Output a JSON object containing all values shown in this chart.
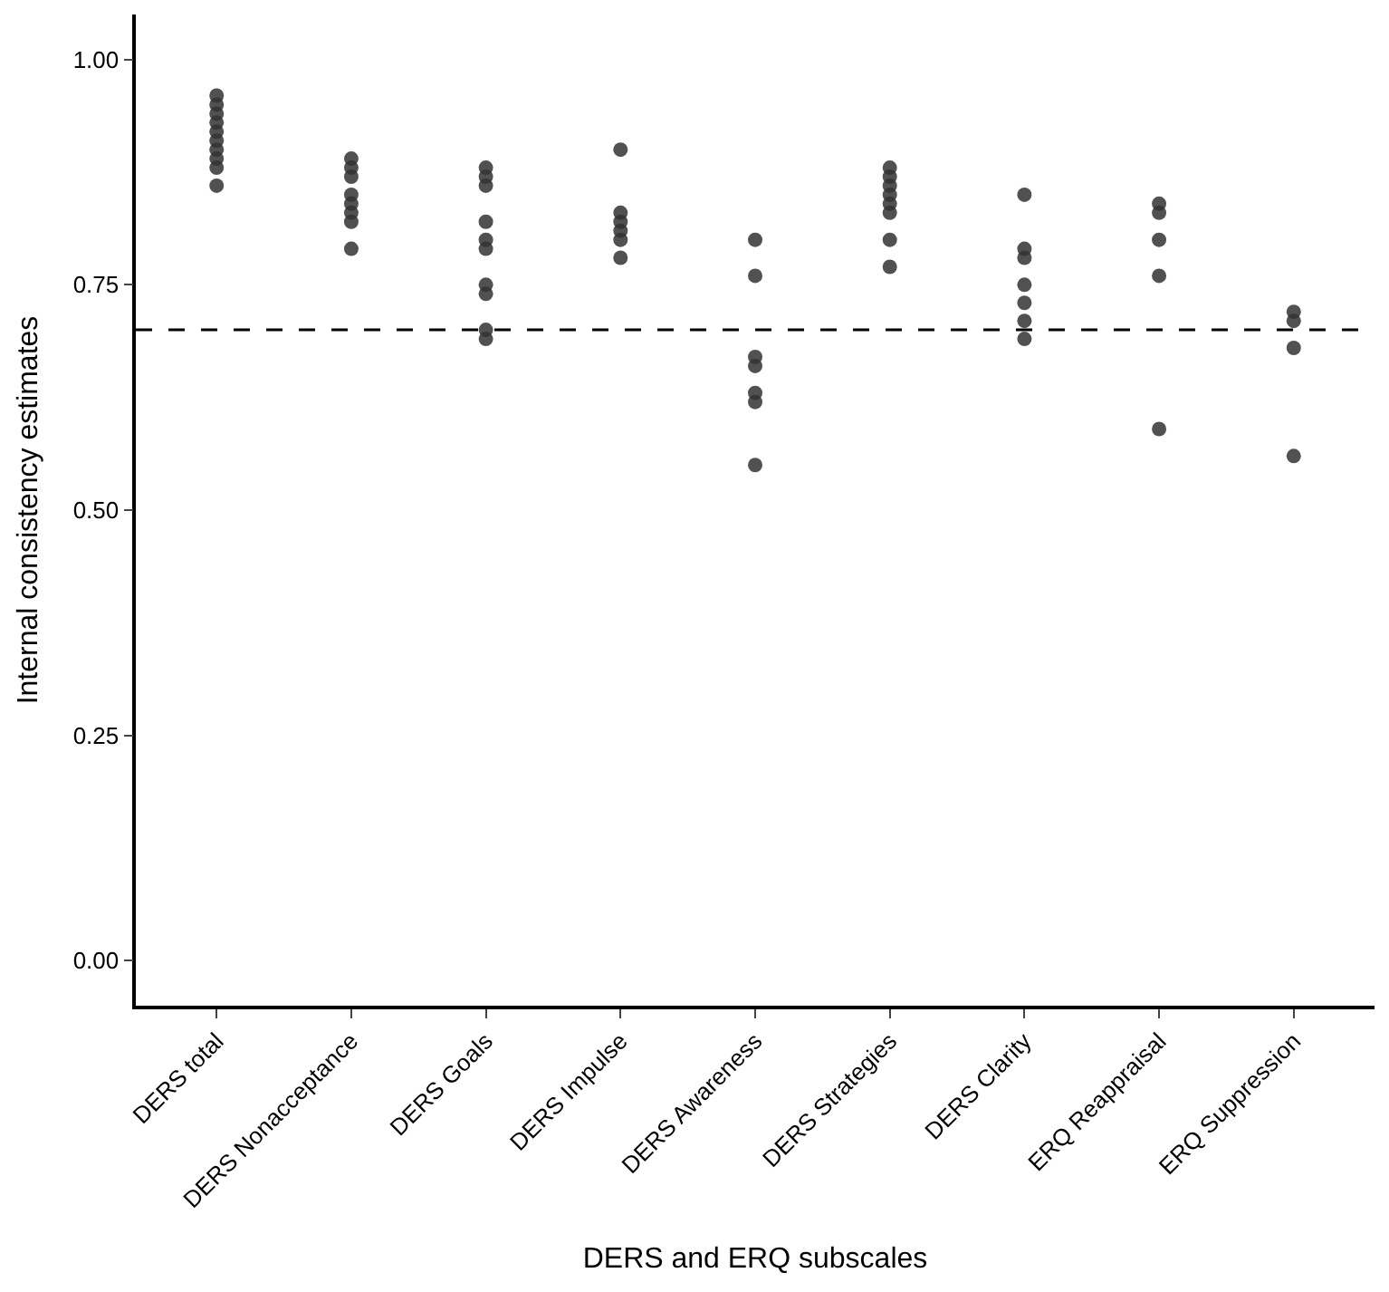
{
  "chart_data": {
    "type": "scatter",
    "xlabel": "DERS and ERQ subscales",
    "ylabel": "Internal consistency estimates",
    "categories": [
      "DERS total",
      "DERS Nonacceptance",
      "DERS Goals",
      "DERS Impulse",
      "DERS Awareness",
      "DERS Strategies",
      "DERS Clarity",
      "ERQ Reappraisal",
      "ERQ Suppression"
    ],
    "series": [
      {
        "color": "#333333",
        "x": [
          "DERS total",
          "DERS total",
          "DERS total",
          "DERS total",
          "DERS total",
          "DERS total",
          "DERS total",
          "DERS total",
          "DERS total",
          "DERS total",
          "DERS Nonacceptance",
          "DERS Nonacceptance",
          "DERS Nonacceptance",
          "DERS Nonacceptance",
          "DERS Nonacceptance",
          "DERS Nonacceptance",
          "DERS Nonacceptance",
          "DERS Nonacceptance",
          "DERS Goals",
          "DERS Goals",
          "DERS Goals",
          "DERS Goals",
          "DERS Goals",
          "DERS Goals",
          "DERS Goals",
          "DERS Goals",
          "DERS Goals",
          "DERS Goals",
          "DERS Impulse",
          "DERS Impulse",
          "DERS Impulse",
          "DERS Impulse",
          "DERS Impulse",
          "DERS Impulse",
          "DERS Awareness",
          "DERS Awareness",
          "DERS Awareness",
          "DERS Awareness",
          "DERS Awareness",
          "DERS Awareness",
          "DERS Awareness",
          "DERS Strategies",
          "DERS Strategies",
          "DERS Strategies",
          "DERS Strategies",
          "DERS Strategies",
          "DERS Strategies",
          "DERS Strategies",
          "DERS Strategies",
          "DERS Clarity",
          "DERS Clarity",
          "DERS Clarity",
          "DERS Clarity",
          "DERS Clarity",
          "DERS Clarity",
          "DERS Clarity",
          "ERQ Reappraisal",
          "ERQ Reappraisal",
          "ERQ Reappraisal",
          "ERQ Reappraisal",
          "ERQ Reappraisal",
          "ERQ Suppression",
          "ERQ Suppression",
          "ERQ Suppression",
          "ERQ Suppression"
        ],
        "values": [
          0.96,
          0.95,
          0.94,
          0.93,
          0.92,
          0.91,
          0.9,
          0.89,
          0.88,
          0.86,
          0.89,
          0.88,
          0.87,
          0.85,
          0.84,
          0.83,
          0.82,
          0.79,
          0.88,
          0.87,
          0.86,
          0.82,
          0.8,
          0.79,
          0.75,
          0.74,
          0.7,
          0.69,
          0.9,
          0.83,
          0.82,
          0.81,
          0.8,
          0.78,
          0.8,
          0.76,
          0.67,
          0.66,
          0.63,
          0.62,
          0.55,
          0.88,
          0.87,
          0.86,
          0.85,
          0.84,
          0.83,
          0.8,
          0.77,
          0.85,
          0.79,
          0.78,
          0.75,
          0.73,
          0.71,
          0.69,
          0.84,
          0.83,
          0.8,
          0.76,
          0.59,
          0.72,
          0.71,
          0.68,
          0.56
        ]
      }
    ],
    "ylim": [
      -0.05,
      1.05
    ],
    "yticks": [
      {
        "value": 0,
        "label": "0.00"
      },
      {
        "value": 0.25,
        "label": "0.25"
      },
      {
        "value": 0.5,
        "label": "0.50"
      },
      {
        "value": 0.75,
        "label": "0.75"
      },
      {
        "value": 1,
        "label": "1.00"
      }
    ],
    "ref_lines": [
      {
        "axis": "y",
        "value": 0.7,
        "line_style": "dashed",
        "color": "#000000"
      }
    ],
    "marker": "circle"
  }
}
